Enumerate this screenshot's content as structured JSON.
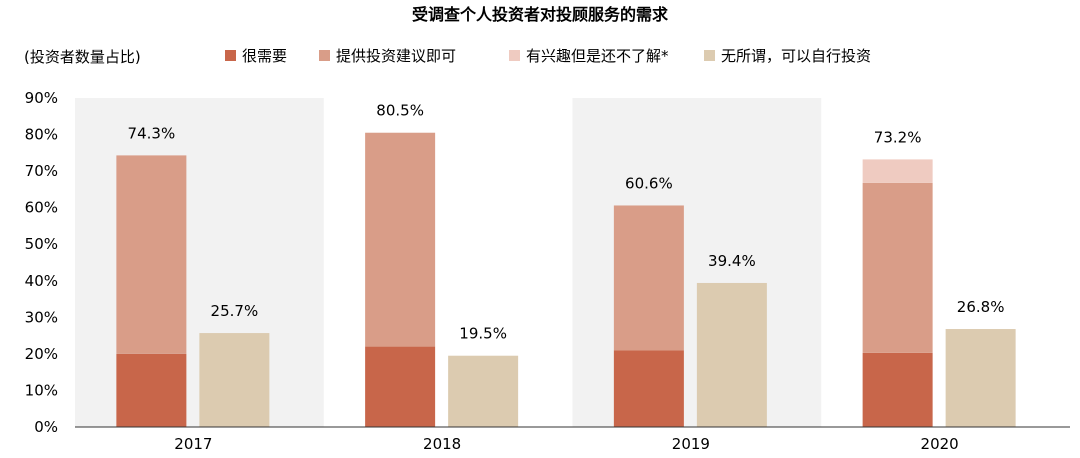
{
  "chart_data": {
    "type": "bar",
    "title": "受调查个人投资者对投顾服务的需求",
    "ylabel": "(投资者数量占比)",
    "ylim": [
      0,
      90
    ],
    "y_ticks": [
      "0%",
      "10%",
      "20%",
      "30%",
      "40%",
      "50%",
      "60%",
      "70%",
      "80%",
      "90%"
    ],
    "categories": [
      "2017",
      "2018",
      "2019",
      "2020"
    ],
    "legend_position": "top",
    "shaded_categories": [
      "2017",
      "2019"
    ],
    "shade_color": "#f2f2f2",
    "series": [
      {
        "name": "很需要",
        "color": "#c8664a",
        "values": [
          20,
          22,
          21,
          20.3
        ],
        "stack": "need"
      },
      {
        "name": "提供投资建议即可",
        "color": "#d99d88",
        "values": [
          54.3,
          58.5,
          39.6,
          46.5
        ],
        "stack": "need"
      },
      {
        "name": "有兴趣但是还不了解*",
        "color": "#efcbc1",
        "values": [
          0,
          0,
          0,
          6.4
        ],
        "stack": "need"
      },
      {
        "name": "无所谓，可以自行投资",
        "color": "#dccbb0",
        "values": [
          25.7,
          19.5,
          39.4,
          26.8
        ],
        "stack": "indiff"
      }
    ],
    "total_labels": {
      "need": [
        "74.3%",
        "80.5%",
        "60.6%",
        "73.2%"
      ],
      "indiff": [
        "25.7%",
        "19.5%",
        "39.4%",
        "26.8%"
      ]
    }
  }
}
